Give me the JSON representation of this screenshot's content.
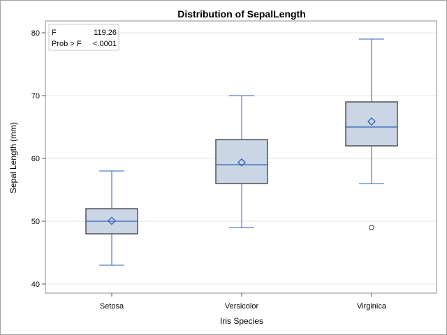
{
  "chart_data": {
    "type": "box",
    "title": "Distribution of SepalLength",
    "xlabel": "Iris Species",
    "ylabel": "Sepal Length (mm)",
    "ylim": [
      38.5,
      83
    ],
    "yticks": [
      40,
      50,
      60,
      70,
      80
    ],
    "grid": true,
    "categories": [
      "Setosa",
      "Versicolor",
      "Virginica"
    ],
    "boxes": [
      {
        "name": "Setosa",
        "min": 43,
        "q1": 48,
        "median": 50,
        "q3": 52,
        "max": 58,
        "mean": 50.06,
        "outliers": []
      },
      {
        "name": "Versicolor",
        "min": 49,
        "q1": 56,
        "median": 59,
        "q3": 63,
        "max": 70,
        "mean": 59.36,
        "outliers": []
      },
      {
        "name": "Virginica",
        "min": 56,
        "q1": 62,
        "median": 65,
        "q3": 69,
        "max": 79,
        "mean": 65.88,
        "outliers": [
          49
        ]
      }
    ],
    "inset_table": [
      {
        "label": "F",
        "value": "119.26"
      },
      {
        "label": "Prob > F",
        "value": "<.0001"
      }
    ],
    "colors": {
      "box_fill": "#cad5e6",
      "line": "#2c5fb8",
      "box_border": "#3a3a3a",
      "grid": "#e6e6e6"
    }
  }
}
